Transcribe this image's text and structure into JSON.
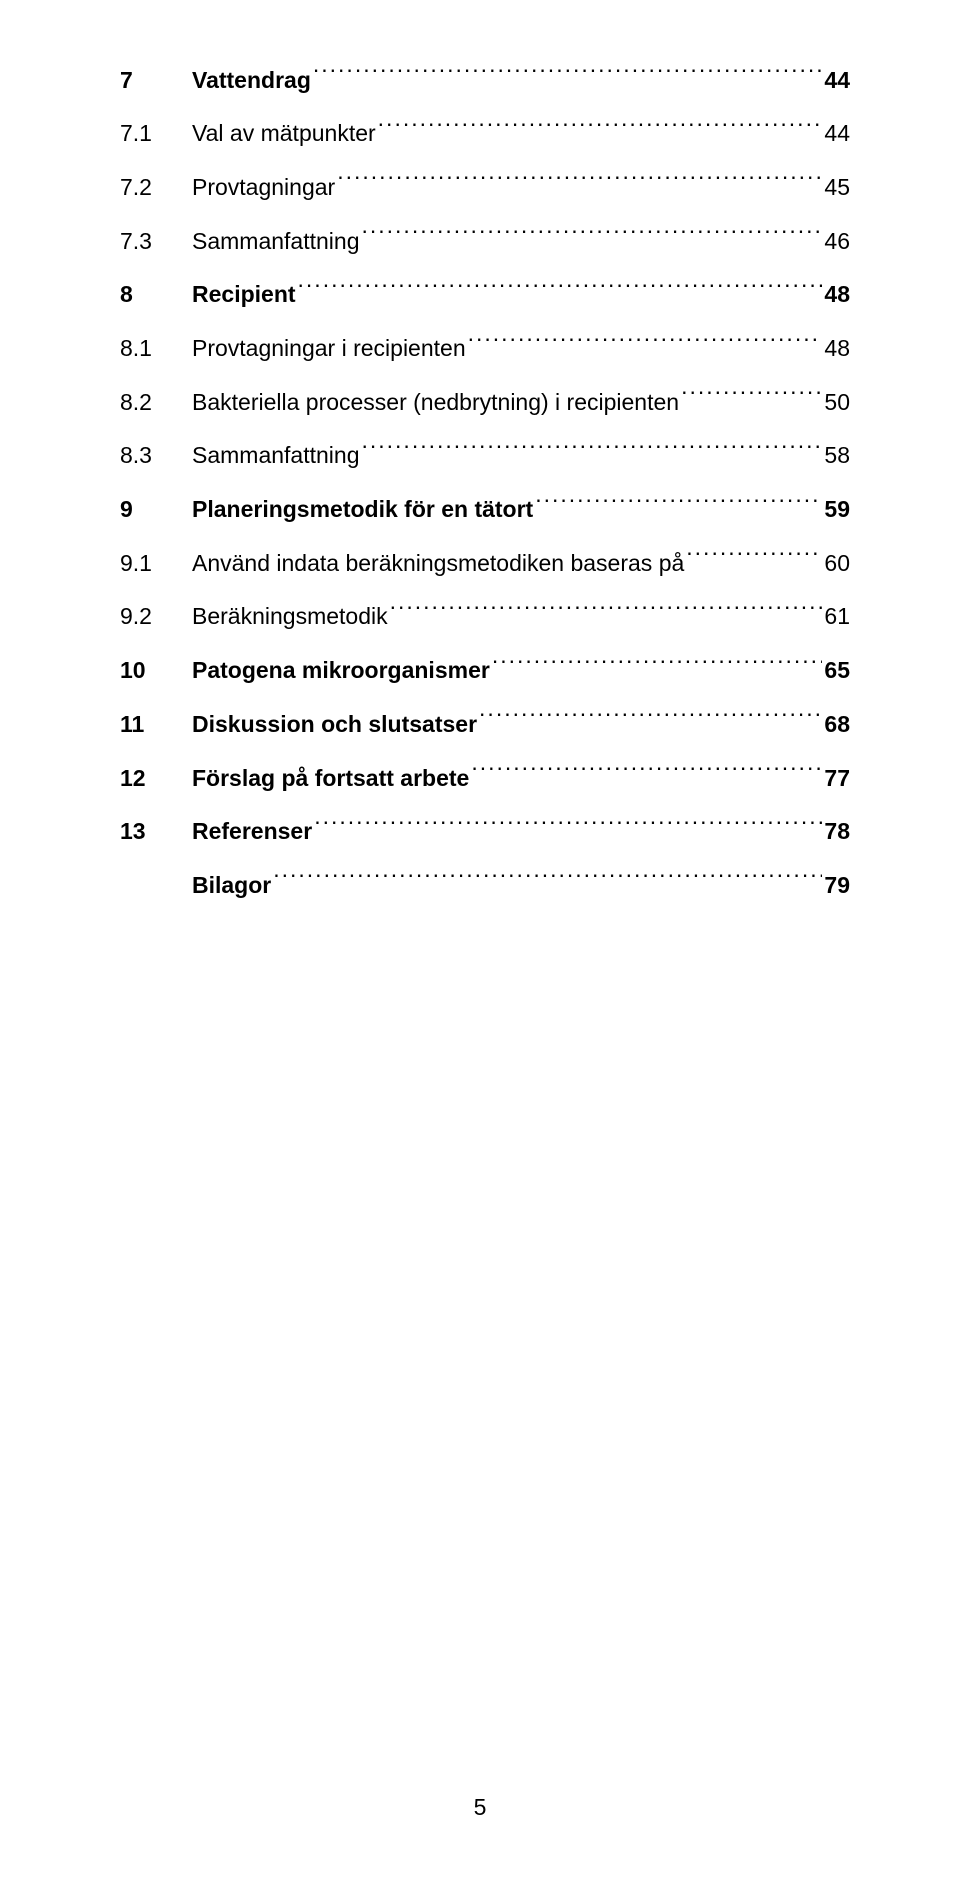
{
  "toc": [
    {
      "num": "7",
      "title": "Vattendrag",
      "page": "44",
      "level": 1,
      "bold": true
    },
    {
      "num": "7.1",
      "title": "Val av mätpunkter",
      "page": "44",
      "level": 2,
      "bold": false
    },
    {
      "num": "7.2",
      "title": "Provtagningar",
      "page": "45",
      "level": 2,
      "bold": false
    },
    {
      "num": "7.3",
      "title": "Sammanfattning",
      "page": "46",
      "level": 2,
      "bold": false
    },
    {
      "num": "8",
      "title": "Recipient",
      "page": "48",
      "level": 1,
      "bold": true
    },
    {
      "num": "8.1",
      "title": "Provtagningar i recipienten",
      "page": "48",
      "level": 2,
      "bold": false
    },
    {
      "num": "8.2",
      "title": "Bakteriella processer (nedbrytning) i recipienten",
      "page": "50",
      "level": 2,
      "bold": false
    },
    {
      "num": "8.3",
      "title": "Sammanfattning",
      "page": "58",
      "level": 2,
      "bold": false
    },
    {
      "num": "9",
      "title": "Planeringsmetodik för en tätort",
      "page": "59",
      "level": 1,
      "bold": true
    },
    {
      "num": "9.1",
      "title": "Använd indata beräkningsmetodiken baseras på",
      "page": "60",
      "level": 2,
      "bold": false
    },
    {
      "num": "9.2",
      "title": "Beräkningsmetodik",
      "page": "61",
      "level": 2,
      "bold": false
    },
    {
      "num": "10",
      "title": "Patogena mikroorganismer",
      "page": "65",
      "level": 1,
      "bold": true
    },
    {
      "num": "11",
      "title": "Diskussion och slutsatser",
      "page": "68",
      "level": 1,
      "bold": true
    },
    {
      "num": "12",
      "title": "Förslag på fortsatt arbete",
      "page": "77",
      "level": 1,
      "bold": true
    },
    {
      "num": "13",
      "title": "Referenser",
      "page": "78",
      "level": 1,
      "bold": true
    },
    {
      "num": "",
      "title": "Bilagor",
      "page": "79",
      "level": 1,
      "bold": true
    }
  ],
  "page_number": "5"
}
